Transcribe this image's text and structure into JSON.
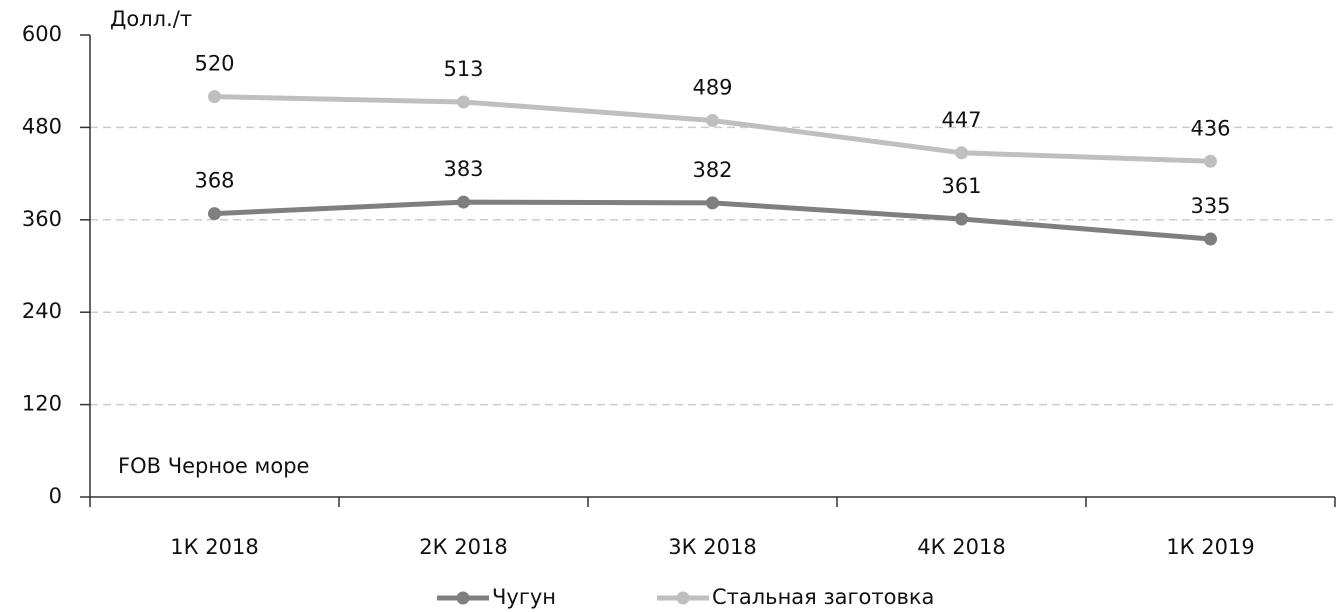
{
  "chart_data": {
    "type": "line",
    "categories": [
      "1К 2018",
      "2К 2018",
      "3К 2018",
      "4К 2018",
      "1К 2019"
    ],
    "series": [
      {
        "name": "Чугун",
        "color": "#7f7f7f",
        "values": [
          368,
          383,
          382,
          361,
          335
        ]
      },
      {
        "name": "Стальная заготовка",
        "color": "#bfbfbf",
        "values": [
          520,
          513,
          489,
          447,
          436
        ]
      }
    ],
    "ylim": [
      0,
      600
    ],
    "yticks": [
      0,
      120,
      240,
      360,
      480,
      600
    ],
    "grid": true,
    "annotations": [
      "Долл./т",
      "FOB Черное море"
    ]
  }
}
